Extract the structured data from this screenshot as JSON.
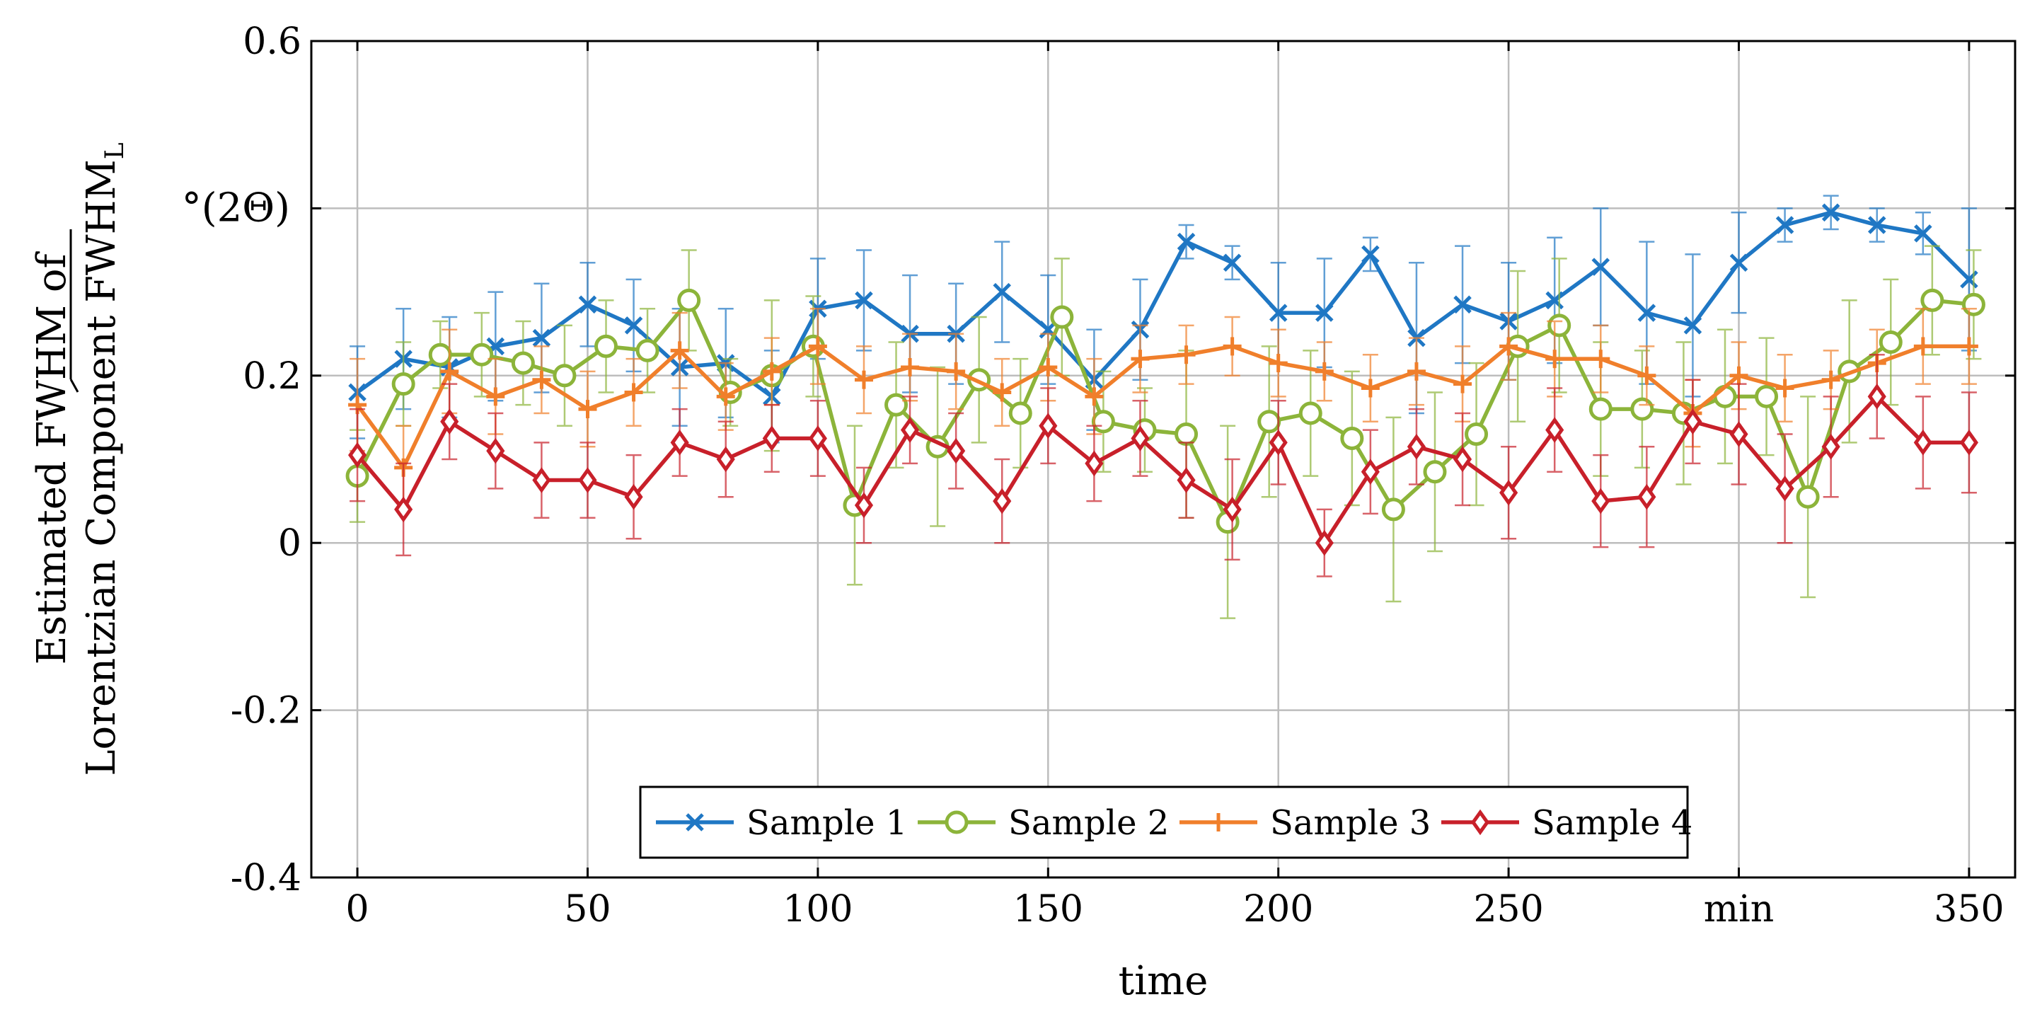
{
  "chart_data": {
    "type": "line",
    "title": "",
    "xlabel": "time",
    "ylabel_line1": "Estimated FWHM of",
    "ylabel_line2": "Lorentzian Component FWHM",
    "ylabel_subscript": "L",
    "yunit": "°(2Θ)",
    "xunit": "min",
    "xlim": [
      -10,
      360
    ],
    "ylim": [
      -0.4,
      0.6
    ],
    "grid": true,
    "legend_position": "bottom-center",
    "xticks": [
      {
        "value": 0,
        "label": "0"
      },
      {
        "value": 50,
        "label": "50"
      },
      {
        "value": 100,
        "label": "100"
      },
      {
        "value": 150,
        "label": "150"
      },
      {
        "value": 200,
        "label": "200"
      },
      {
        "value": 250,
        "label": "250"
      },
      {
        "value": 300,
        "label": "min"
      },
      {
        "value": 350,
        "label": "350"
      }
    ],
    "yticks": [
      {
        "value": 0.6,
        "label": "0.6"
      },
      {
        "value": 0.4,
        "label": ""
      },
      {
        "value": 0.2,
        "label": "0.2"
      },
      {
        "value": 0,
        "label": "0"
      },
      {
        "value": -0.2,
        "label": "-0.2"
      },
      {
        "value": -0.4,
        "label": "-0.4"
      }
    ],
    "series": [
      {
        "name": "Sample 1",
        "color": "#1f77c4",
        "marker": "x",
        "x": [
          0,
          10,
          20,
          30,
          40,
          50,
          60,
          70,
          80,
          90,
          100,
          110,
          120,
          130,
          140,
          150,
          160,
          170,
          180,
          190,
          200,
          210,
          220,
          230,
          240,
          250,
          260,
          270,
          280,
          290,
          300,
          310,
          320,
          330,
          340,
          350
        ],
        "y": [
          0.18,
          0.22,
          0.21,
          0.235,
          0.245,
          0.285,
          0.26,
          0.21,
          0.215,
          0.175,
          0.28,
          0.29,
          0.25,
          0.25,
          0.3,
          0.255,
          0.195,
          0.255,
          0.36,
          0.335,
          0.275,
          0.275,
          0.345,
          0.245,
          0.285,
          0.265,
          0.29,
          0.33,
          0.275,
          0.26,
          0.335,
          0.38,
          0.395,
          0.38,
          0.37,
          0.315
        ],
        "err": [
          0.055,
          0.06,
          0.06,
          0.065,
          0.065,
          0.05,
          0.055,
          0.07,
          0.065,
          0.055,
          0.06,
          0.06,
          0.07,
          0.06,
          0.06,
          0.065,
          0.06,
          0.06,
          0.02,
          0.02,
          0.06,
          0.065,
          0.02,
          0.09,
          0.07,
          0.07,
          0.075,
          0.07,
          0.085,
          0.085,
          0.06,
          0.02,
          0.02,
          0.02,
          0.025,
          0.085
        ]
      },
      {
        "name": "Sample 2",
        "color": "#8cb43a",
        "marker": "o",
        "x": [
          0,
          10,
          18,
          27,
          36,
          45,
          54,
          63,
          72,
          81,
          90,
          99,
          108,
          117,
          126,
          135,
          144,
          153,
          162,
          171,
          180,
          189,
          198,
          207,
          216,
          225,
          234,
          243,
          252,
          261,
          270,
          279,
          288,
          297,
          306,
          315,
          324,
          333,
          342,
          351
        ],
        "y": [
          0.08,
          0.19,
          0.225,
          0.225,
          0.215,
          0.2,
          0.235,
          0.23,
          0.29,
          0.18,
          0.2,
          0.235,
          0.045,
          0.165,
          0.115,
          0.195,
          0.155,
          0.27,
          0.145,
          0.135,
          0.13,
          0.025,
          0.145,
          0.155,
          0.125,
          0.04,
          0.085,
          0.13,
          0.235,
          0.26,
          0.16,
          0.16,
          0.155,
          0.175,
          0.175,
          0.055,
          0.205,
          0.24,
          0.29,
          0.285
        ],
        "err": [
          0.055,
          0.05,
          0.04,
          0.05,
          0.05,
          0.06,
          0.055,
          0.05,
          0.06,
          0.04,
          0.09,
          0.06,
          0.095,
          0.075,
          0.095,
          0.075,
          0.065,
          0.07,
          0.06,
          0.05,
          0.1,
          0.115,
          0.09,
          0.075,
          0.08,
          0.11,
          0.095,
          0.085,
          0.09,
          0.08,
          0.08,
          0.07,
          0.085,
          0.08,
          0.07,
          0.12,
          0.085,
          0.075,
          0.065,
          0.065
        ]
      },
      {
        "name": "Sample 3",
        "color": "#f07f2b",
        "marker": "+",
        "x": [
          0,
          10,
          20,
          30,
          40,
          50,
          60,
          70,
          80,
          90,
          100,
          110,
          120,
          130,
          140,
          150,
          160,
          170,
          180,
          190,
          200,
          210,
          220,
          230,
          240,
          250,
          260,
          270,
          280,
          290,
          300,
          310,
          320,
          330,
          340,
          350
        ],
        "y": [
          0.165,
          0.09,
          0.205,
          0.175,
          0.195,
          0.16,
          0.18,
          0.23,
          0.175,
          0.205,
          0.235,
          0.195,
          0.21,
          0.205,
          0.18,
          0.21,
          0.175,
          0.22,
          0.225,
          0.235,
          0.215,
          0.205,
          0.185,
          0.205,
          0.19,
          0.235,
          0.22,
          0.22,
          0.2,
          0.155,
          0.2,
          0.185,
          0.195,
          0.215,
          0.235,
          0.235
        ],
        "err": [
          0.055,
          0.05,
          0.05,
          0.045,
          0.04,
          0.045,
          0.04,
          0.045,
          0.04,
          0.04,
          0.045,
          0.04,
          0.04,
          0.045,
          0.04,
          0.04,
          0.045,
          0.04,
          0.035,
          0.035,
          0.04,
          0.035,
          0.04,
          0.04,
          0.045,
          0.04,
          0.045,
          0.04,
          0.035,
          0.04,
          0.04,
          0.04,
          0.035,
          0.04,
          0.045,
          0.045
        ]
      },
      {
        "name": "Sample 4",
        "color": "#c8202a",
        "marker": "diamond",
        "x": [
          0,
          10,
          20,
          30,
          40,
          50,
          60,
          70,
          80,
          90,
          100,
          110,
          120,
          130,
          140,
          150,
          160,
          170,
          180,
          190,
          200,
          210,
          220,
          230,
          240,
          250,
          260,
          270,
          280,
          290,
          300,
          310,
          320,
          330,
          340,
          350
        ],
        "y": [
          0.105,
          0.04,
          0.145,
          0.11,
          0.075,
          0.075,
          0.055,
          0.12,
          0.1,
          0.125,
          0.125,
          0.045,
          0.135,
          0.11,
          0.05,
          0.14,
          0.095,
          0.125,
          0.075,
          0.04,
          0.12,
          0.0,
          0.085,
          0.115,
          0.1,
          0.06,
          0.135,
          0.05,
          0.055,
          0.145,
          0.13,
          0.065,
          0.115,
          0.175,
          0.12,
          0.12
        ],
        "err": [
          0.055,
          0.055,
          0.045,
          0.045,
          0.045,
          0.045,
          0.05,
          0.04,
          0.045,
          0.04,
          0.045,
          0.045,
          0.04,
          0.045,
          0.05,
          0.045,
          0.045,
          0.045,
          0.045,
          0.06,
          0.05,
          0.04,
          0.05,
          0.045,
          0.055,
          0.055,
          0.05,
          0.055,
          0.06,
          0.05,
          0.06,
          0.065,
          0.06,
          0.05,
          0.055,
          0.06
        ]
      }
    ]
  }
}
